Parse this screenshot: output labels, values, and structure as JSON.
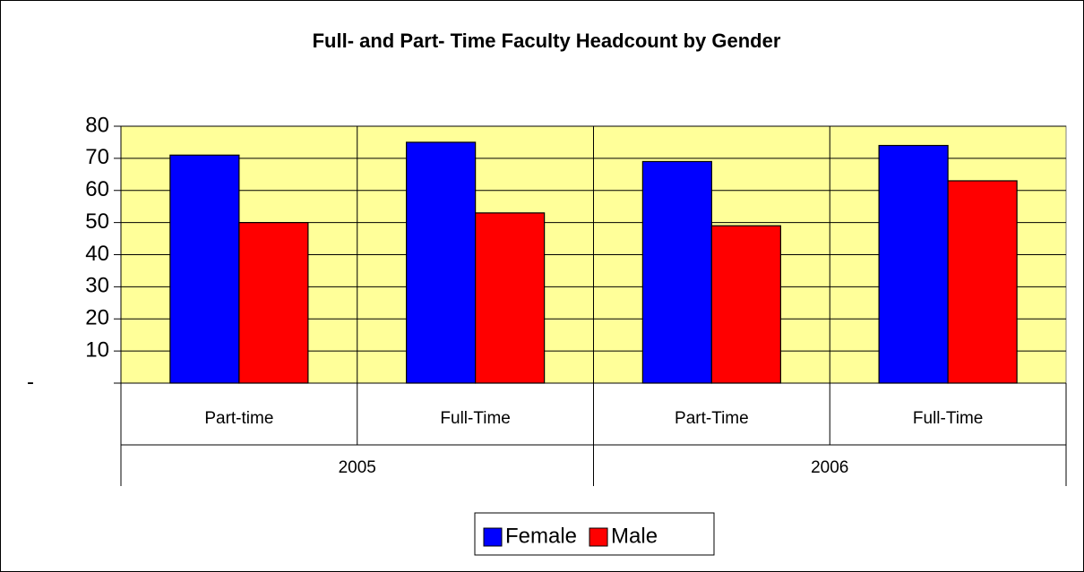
{
  "chart_data": {
    "type": "bar",
    "title": "Full- and Part- Time Faculty Headcount by Gender",
    "categories": [
      "Part-time",
      "Full-Time",
      "Part-Time",
      "Full-Time"
    ],
    "groups": [
      "2005",
      "2006"
    ],
    "series": [
      {
        "name": "Female",
        "color": "#0000ff",
        "values": [
          71,
          75,
          69,
          74
        ]
      },
      {
        "name": "Male",
        "color": "#ff0000",
        "values": [
          50,
          53,
          49,
          63
        ]
      }
    ],
    "ylim": [
      0,
      80
    ],
    "yticks": [
      {
        "value": 0,
        "label": "-"
      },
      10,
      20,
      30,
      40,
      50,
      60,
      70,
      80
    ],
    "grid": true,
    "plot_background": "#ffff99",
    "legend": "bottom"
  }
}
